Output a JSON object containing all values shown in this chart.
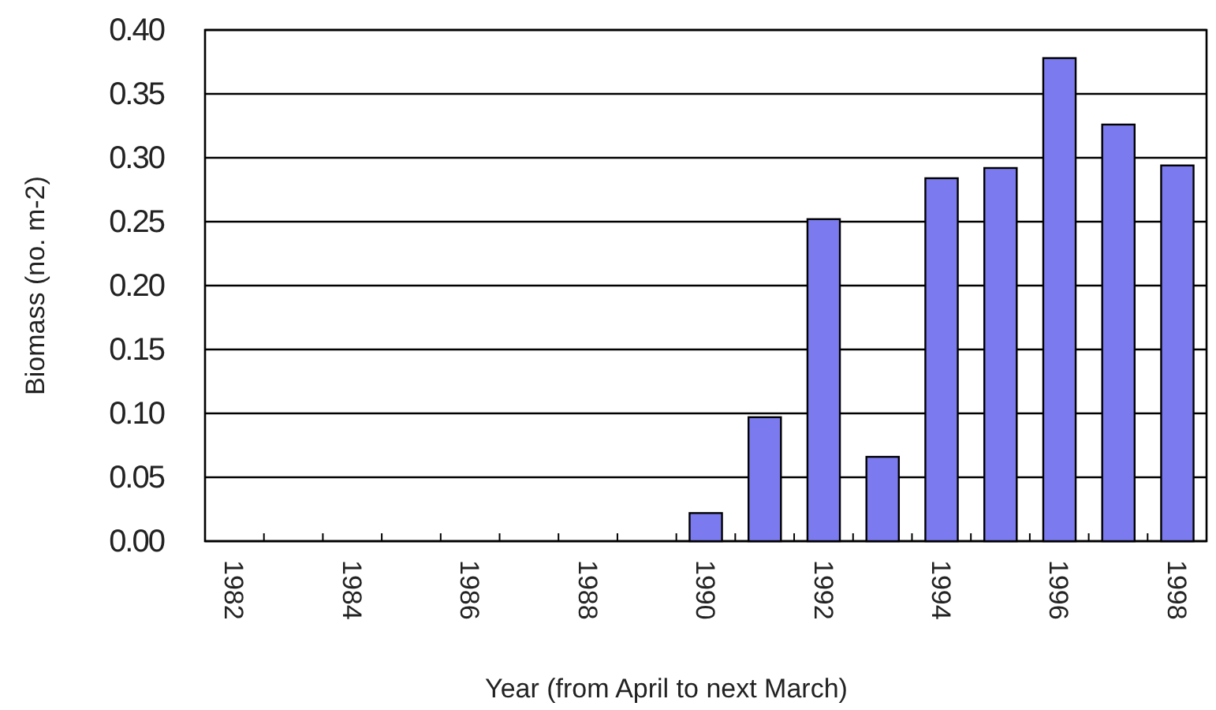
{
  "chart_data": {
    "type": "bar",
    "xlabel": "Year (from April to next March)",
    "ylabel": "Biomass (no. m-2)",
    "categories": [
      "1982",
      null,
      "1984",
      null,
      "1986",
      null,
      "1988",
      null,
      "1990",
      null,
      "1992",
      null,
      "1994",
      null,
      "1996",
      null,
      "1998"
    ],
    "values": [
      0,
      0,
      0,
      0,
      0,
      0,
      0,
      0,
      0.022,
      0.097,
      0.252,
      0.066,
      0.284,
      0.292,
      0.378,
      0.326,
      0.294
    ],
    "color": "#7b7bef",
    "ylim": [
      0,
      0.4
    ],
    "yticks": [
      {
        "value": 0,
        "label": "0.00"
      },
      {
        "value": 0.05,
        "label": "0.05"
      },
      {
        "value": 0.1,
        "label": "0.10"
      },
      {
        "value": 0.15,
        "label": "0.15"
      },
      {
        "value": 0.2,
        "label": "0.20"
      },
      {
        "value": 0.25,
        "label": "0.25"
      },
      {
        "value": 0.3,
        "label": "0.30"
      },
      {
        "value": 0.35,
        "label": "0.35"
      },
      {
        "value": 0.4,
        "label": "0.40"
      }
    ],
    "grid": "y"
  }
}
